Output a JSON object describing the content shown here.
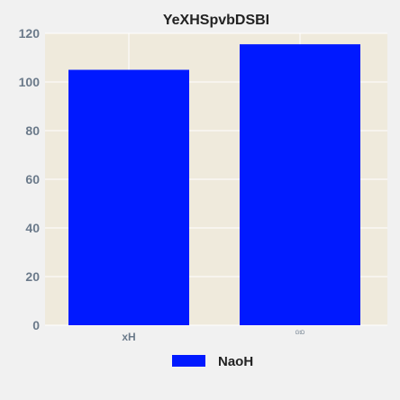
{
  "chart_data": {
    "type": "bar",
    "title": "YeXHSpvbDSBI",
    "categories": [
      "xH",
      "GtD"
    ],
    "series": [
      {
        "name": "NaoH",
        "values": [
          105,
          115.5
        ]
      }
    ],
    "xlabel": "",
    "ylabel": "",
    "ylim": [
      0,
      120
    ],
    "yticks": [
      0,
      20,
      40,
      60,
      80,
      100,
      120
    ],
    "grid": true,
    "legend_position": "bottom-center"
  },
  "colors": {
    "bar": "#0019ff",
    "plot_background": "#efeadc",
    "figure_background": "#f1f1f1",
    "grid": "#ffffff"
  }
}
